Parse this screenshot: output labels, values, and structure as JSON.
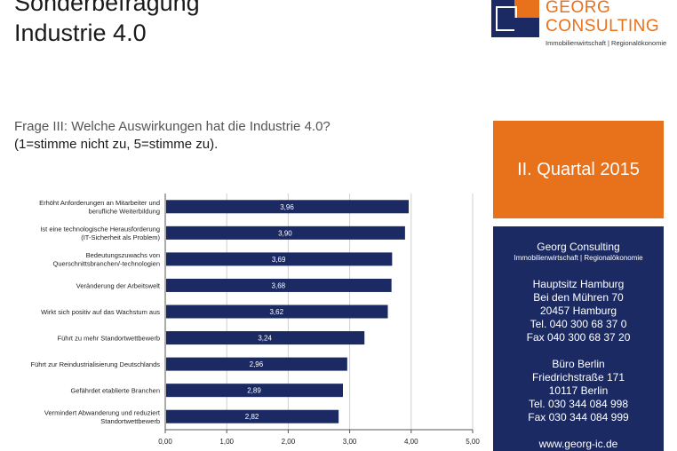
{
  "header": {
    "title_line1": "Sonderbefragung",
    "title_line2": "Industrie 4.0"
  },
  "logo": {
    "name_line1": "GEORG",
    "name_line2": "CONSULTING",
    "subtitle": "Immobilienwirtschaft | Regionalökonomie",
    "colors": {
      "orange": "#e8711c",
      "navy": "#1b2a63"
    }
  },
  "question": {
    "text": "Frage III: Welche Auswirkungen hat die Industrie 4.0?",
    "scale_note": "(1=stimme nicht zu, 5=stimme zu)."
  },
  "quarter_box": {
    "label": "II. Quartal 2015"
  },
  "contact": {
    "company": "Georg Consulting",
    "company_sub": "Immobilienwirtschaft | Regionalökonomie",
    "hq_title": "Hauptsitz Hamburg",
    "hq_street": "Bei den Mühren 70",
    "hq_city": "20457 Hamburg",
    "hq_tel": "Tel. 040 300 68 37 0",
    "hq_fax": "Fax 040 300 68 37 20",
    "berlin_title": "Büro Berlin",
    "berlin_street": "Friedrichstraße 171",
    "berlin_city": "10117 Berlin",
    "berlin_tel": "Tel. 030 344 084 998",
    "berlin_fax": "Fax 030 344 084 999",
    "web": "www.georg-ic.de"
  },
  "chart_data": {
    "type": "bar",
    "orientation": "horizontal",
    "categories": [
      [
        "Erhöht Anforderungen an Mitarbeiter und",
        "berufliche Weiterbildung"
      ],
      [
        "Ist eine technologische Herausforderung",
        "(IT-Sicherheit als Problem)"
      ],
      [
        "Bedeutungszuwachs von",
        "Querschnittsbranchen/-technologien"
      ],
      [
        "Veränderung der Arbeitswelt"
      ],
      [
        "Wirkt sich positiv auf das Wachstum aus"
      ],
      [
        "Führt zu mehr Standortwettbewerb"
      ],
      [
        "Führt zur Reindustrialisierung Deutschlands"
      ],
      [
        "Gefährdet etablierte Branchen"
      ],
      [
        "Vermindert Abwanderung und reduziert",
        "Standortwettbewerb"
      ]
    ],
    "values": [
      3.96,
      3.9,
      3.69,
      3.68,
      3.62,
      3.24,
      2.96,
      2.89,
      2.82
    ],
    "value_labels": [
      "3,96",
      "3,90",
      "3,69",
      "3,68",
      "3,62",
      "3,24",
      "2,96",
      "2,89",
      "2,82"
    ],
    "xlim": [
      0,
      5
    ],
    "xticks": [
      "0,00",
      "1,00",
      "2,00",
      "3,00",
      "4,00",
      "5,00"
    ],
    "bar_color": "#1b2a63",
    "grid": "vertical"
  }
}
